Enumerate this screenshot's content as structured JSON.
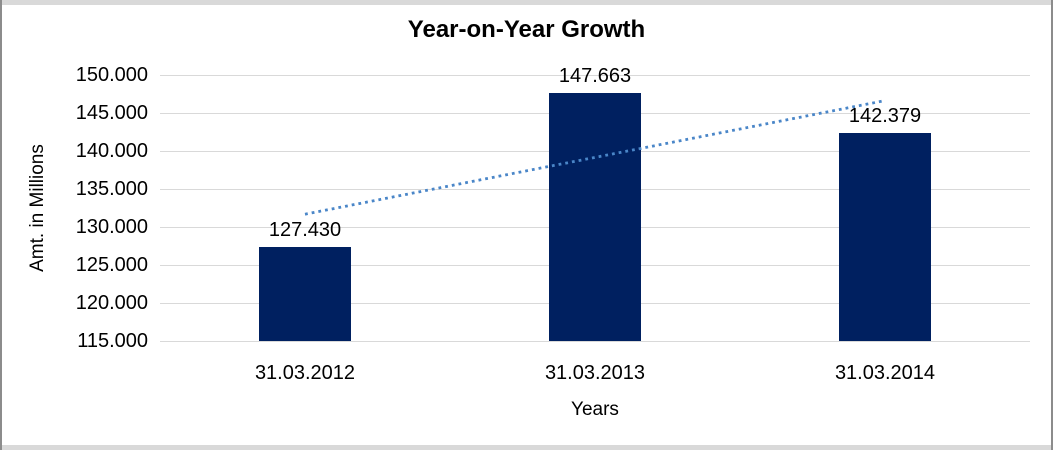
{
  "chart_data": {
    "type": "bar",
    "title": "Year-on-Year Growth",
    "xlabel": "Years",
    "ylabel": "Amt. in Millions",
    "categories": [
      "31.03.2012",
      "31.03.2013",
      "31.03.2014"
    ],
    "values": [
      127430,
      147663,
      142379
    ],
    "data_labels": [
      "127.430",
      "147.663",
      "142.379"
    ],
    "y_ticks": [
      {
        "label": "150.000",
        "value": 150000
      },
      {
        "label": "145.000",
        "value": 145000
      },
      {
        "label": "140.000",
        "value": 140000
      },
      {
        "label": "135.000",
        "value": 135000
      },
      {
        "label": "130.000",
        "value": 130000
      },
      {
        "label": "125.000",
        "value": 125000
      },
      {
        "label": "120.000",
        "value": 120000
      },
      {
        "label": "115.000",
        "value": 115000
      }
    ],
    "ylim": [
      115000,
      150000
    ],
    "grid": true,
    "legend": false,
    "bar_color": "#002060",
    "gridline_color": "#d9d9d9",
    "trendline": {
      "type": "linear",
      "style": "dotted",
      "color": "#4a86c8"
    }
  }
}
